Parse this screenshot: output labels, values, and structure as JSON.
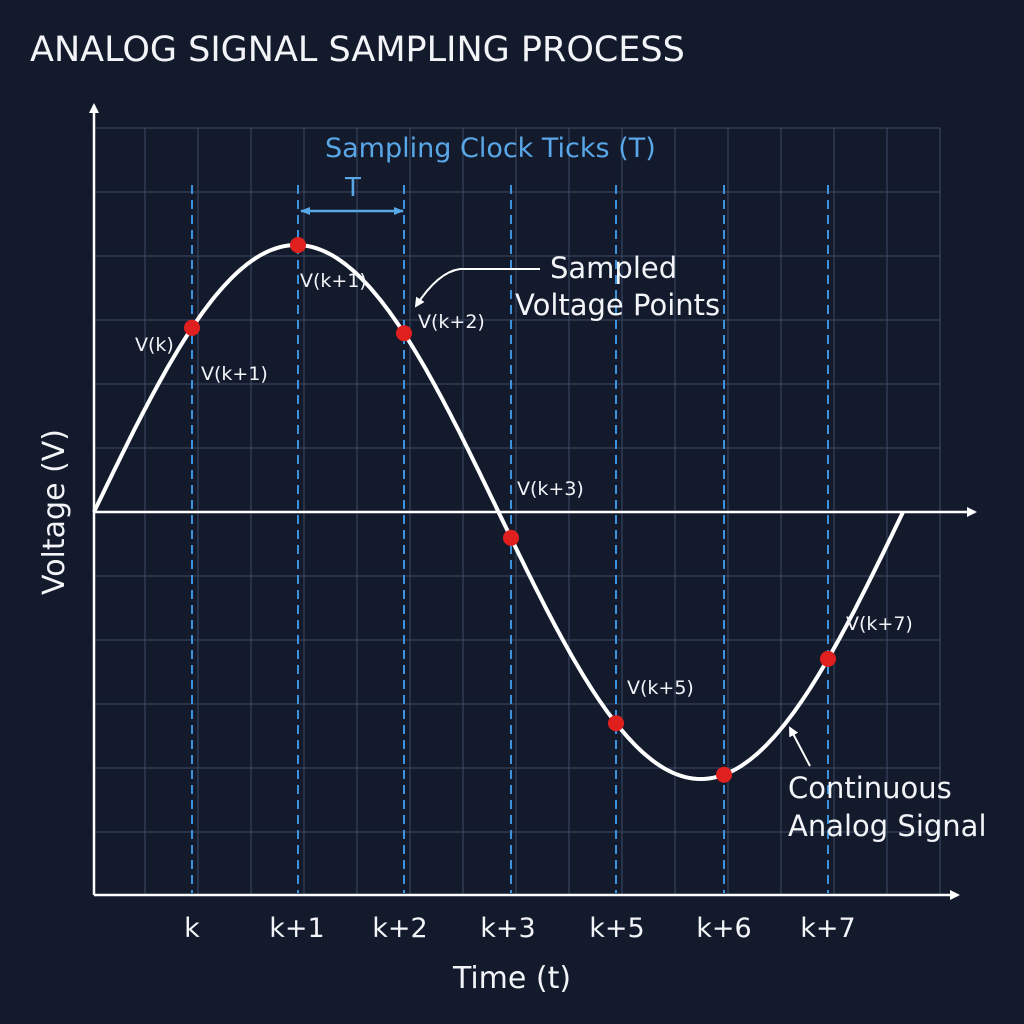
{
  "title": "ANALOG SIGNAL SAMPLING PROCESS",
  "axes": {
    "x_label": "Time (t)",
    "y_label": "Voltage (V)"
  },
  "clock": {
    "title": "Sampling Clock Ticks (T)",
    "period_label": "T",
    "ticks": [
      "k",
      "k+1",
      "k+2",
      "k+3",
      "k+5",
      "k+6",
      "k+7"
    ]
  },
  "samples": [
    {
      "name": "sample-k",
      "label": "V(k)"
    },
    {
      "name": "sample-k-plus-1-second",
      "label": "V(k+1)"
    },
    {
      "name": "sample-k-plus-1",
      "label": "V(k+1)"
    },
    {
      "name": "sample-k-plus-2",
      "label": "V(k+2)"
    },
    {
      "name": "sample-k-plus-3",
      "label": "V(k+3)"
    },
    {
      "name": "sample-k-plus-5",
      "label": "V(k+5)"
    },
    {
      "name": "sample-k-plus-7",
      "label": "V(k+7)"
    }
  ],
  "annotations": {
    "sampled_points_line1": "Sampled",
    "sampled_points_line2": "Voltage Points",
    "continuous_line1": "Continuous",
    "continuous_line2": "Analog Signal"
  },
  "colors": {
    "background": "#121a2c",
    "grid": "#3d4a66",
    "clock_lines": "#3b93e0",
    "signal": "#ffffff",
    "sample_dot": "#e0201f",
    "clock_text": "#5aa7e8"
  }
}
